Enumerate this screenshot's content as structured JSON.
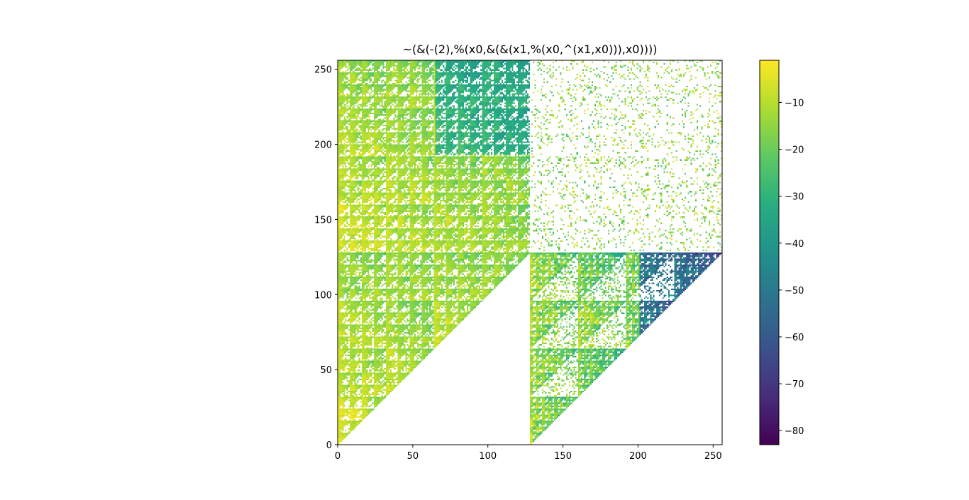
{
  "chart_data": {
    "type": "heatmap",
    "title": "~(&(-(2),%(x0,&(&(x1,%(x0,^(x1,x0))),x0))))",
    "xlabel": "",
    "ylabel": "",
    "xlim": [
      0,
      256
    ],
    "ylim": [
      0,
      256
    ],
    "xticks": [
      0,
      50,
      100,
      150,
      200,
      250
    ],
    "yticks": [
      0,
      50,
      100,
      150,
      200,
      250
    ],
    "x_tick_labels": [
      "0",
      "50",
      "100",
      "150",
      "200",
      "250"
    ],
    "y_tick_labels": [
      "0",
      "50",
      "100",
      "150",
      "200",
      "250"
    ],
    "grid": false,
    "colormap": "viridis",
    "colorbar": {
      "range": [
        -83,
        -1
      ],
      "ticks": [
        -10,
        -20,
        -30,
        -40,
        -50,
        -60,
        -70,
        -80
      ],
      "tick_labels": [
        "−10",
        "−20",
        "−30",
        "−40",
        "−50",
        "−60",
        "−70",
        "−80"
      ],
      "position": "right"
    },
    "grid_size": 256,
    "missing_value_color": "#ffffff"
  }
}
